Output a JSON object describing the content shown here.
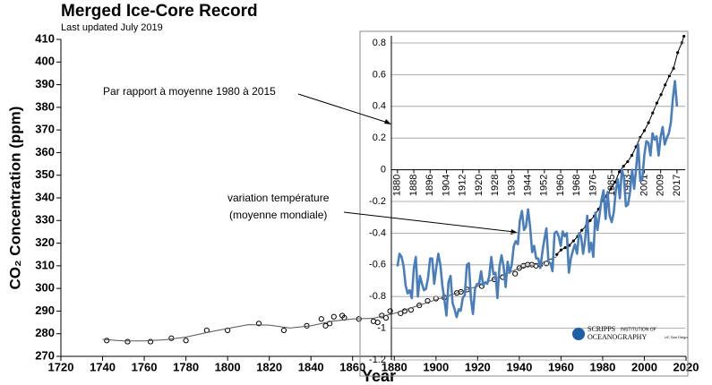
{
  "chart_data": [
    {
      "type": "scatter",
      "title": "Merged Ice-Core Record",
      "subtitle": "Last updated July 2019",
      "xlabel": "Year",
      "ylabel": "CO₂ Concentration (ppm)",
      "xlim": [
        1720,
        2020
      ],
      "xticks": [
        1720,
        1740,
        1760,
        1780,
        1800,
        1820,
        1840,
        1860,
        1880,
        1900,
        1920,
        1940,
        1960,
        1980,
        2000,
        2020
      ],
      "ylim": [
        270,
        410
      ],
      "yticks": [
        270,
        280,
        290,
        300,
        310,
        320,
        330,
        340,
        350,
        360,
        370,
        380,
        390,
        400,
        410
      ],
      "series": [
        {
          "color": "#000000",
          "marker": "circle",
          "x": [
            1742,
            1752,
            1763,
            1773,
            1780,
            1790,
            1800,
            1815,
            1827,
            1838,
            1845,
            1847,
            1849,
            1851,
            1855,
            1856,
            1863,
            1870,
            1872,
            1874,
            1876,
            1878,
            1883,
            1885,
            1888,
            1892,
            1896,
            1900,
            1904,
            1910,
            1912,
            1915,
            1922,
            1928,
            1932,
            1938,
            1940,
            1942,
            1944,
            1946,
            1948,
            1950,
            1953,
            1955
          ],
          "values": [
            277,
            276.5,
            276.5,
            278,
            277,
            281.5,
            281.5,
            284.5,
            281.5,
            283.5,
            286.5,
            283.5,
            284.5,
            287.5,
            288,
            287,
            286.5,
            285.5,
            285,
            288,
            287,
            290,
            289,
            290,
            290.5,
            292.5,
            294.5,
            295.5,
            296,
            298,
            298.5,
            299.5,
            301,
            304,
            305,
            306.5,
            309,
            310,
            310.5,
            310.5,
            310,
            310.5,
            311,
            312
          ]
        },
        {
          "color": "#555555",
          "marker": "none",
          "x": [
            1740,
            1750,
            1760,
            1770,
            1780,
            1790,
            1800,
            1810,
            1820,
            1830,
            1840,
            1850,
            1860,
            1870,
            1880,
            1890,
            1900,
            1910,
            1920,
            1930,
            1940,
            1950,
            1958
          ],
          "values": [
            277.5,
            276.8,
            276.8,
            277.3,
            278.5,
            280.5,
            282.3,
            284,
            283.8,
            282.5,
            283.5,
            285.5,
            286.5,
            286.8,
            289,
            292,
            295,
            298,
            301,
            305,
            309,
            311,
            314
          ]
        },
        {
          "color": "#000000",
          "marker": "dot",
          "x": [
            1958,
            1960,
            1962,
            1964,
            1966,
            1968,
            1970,
            1972,
            1974,
            1976,
            1978,
            1980,
            1982,
            1984,
            1986,
            1988,
            1990,
            1992,
            1994,
            1996,
            1998,
            2000,
            2002,
            2004,
            2006,
            2008,
            2010,
            2012,
            2014,
            2016,
            2018,
            2019
          ],
          "values": [
            315,
            317,
            318,
            319,
            321,
            323,
            325.7,
            327.5,
            330,
            332,
            335,
            338.7,
            341,
            344,
            347,
            351.5,
            354,
            356,
            358.8,
            362.6,
            366.7,
            369.7,
            373.2,
            377.5,
            381.9,
            385.6,
            389.9,
            393.9,
            397.2,
            404.2,
            408.5,
            411.4
          ]
        }
      ],
      "annotations": [
        "Par rapport à moyenne 1980 à 2015",
        "variation température",
        "(moyenne mondiale)"
      ],
      "logo": [
        "SCRIPPS",
        "INSTITUTION OF",
        "OCEANOGRAPHY",
        "UC San Diego"
      ]
    },
    {
      "type": "line",
      "xlim": [
        1877,
        2021
      ],
      "xticks": [
        1880,
        1888,
        1896,
        1904,
        1912,
        1920,
        1928,
        1936,
        1944,
        1952,
        1960,
        1968,
        1976,
        1985,
        1993,
        2001,
        2009,
        2017
      ],
      "ylim": [
        -1.2,
        0.8
      ],
      "yticks": [
        -1.2,
        -1,
        -0.8,
        -0.6,
        -0.4,
        -0.2,
        0,
        0.2,
        0.4,
        0.6,
        0.8
      ],
      "grid": true,
      "x": [
        1880,
        1881,
        1882,
        1883,
        1884,
        1885,
        1886,
        1887,
        1888,
        1889,
        1890,
        1891,
        1892,
        1893,
        1894,
        1895,
        1896,
        1897,
        1898,
        1899,
        1900,
        1901,
        1902,
        1903,
        1904,
        1905,
        1906,
        1907,
        1908,
        1909,
        1910,
        1911,
        1912,
        1913,
        1914,
        1915,
        1916,
        1917,
        1918,
        1919,
        1920,
        1921,
        1922,
        1923,
        1924,
        1925,
        1926,
        1927,
        1928,
        1929,
        1930,
        1931,
        1932,
        1933,
        1934,
        1935,
        1936,
        1937,
        1938,
        1939,
        1940,
        1941,
        1942,
        1943,
        1944,
        1945,
        1946,
        1947,
        1948,
        1949,
        1950,
        1951,
        1952,
        1953,
        1954,
        1955,
        1956,
        1957,
        1958,
        1959,
        1960,
        1961,
        1962,
        1963,
        1964,
        1965,
        1966,
        1967,
        1968,
        1969,
        1970,
        1971,
        1972,
        1973,
        1974,
        1975,
        1976,
        1977,
        1978,
        1979,
        1980,
        1981,
        1982,
        1983,
        1984,
        1985,
        1986,
        1987,
        1988,
        1989,
        1990,
        1991,
        1992,
        1993,
        1994,
        1995,
        1996,
        1997,
        1998,
        1999,
        2000,
        2001,
        2002,
        2003,
        2004,
        2005,
        2006,
        2007,
        2008,
        2009,
        2010,
        2011,
        2012,
        2013,
        2014,
        2015,
        2016,
        2017
      ],
      "series": [
        {
          "color": "#4a7ebb",
          "values": [
            -0.61,
            -0.53,
            -0.55,
            -0.61,
            -0.73,
            -0.78,
            -0.76,
            -0.81,
            -0.62,
            -0.55,
            -0.8,
            -0.67,
            -0.72,
            -0.76,
            -0.75,
            -0.68,
            -0.56,
            -0.56,
            -0.72,
            -0.62,
            -0.53,
            -0.6,
            -0.73,
            -0.82,
            -0.92,
            -0.71,
            -0.67,
            -0.84,
            -0.88,
            -0.93,
            -0.88,
            -0.89,
            -0.81,
            -0.79,
            -0.6,
            -0.59,
            -0.81,
            -0.91,
            -0.75,
            -0.72,
            -0.72,
            -0.64,
            -0.73,
            -0.71,
            -0.72,
            -0.67,
            -0.55,
            -0.66,
            -0.65,
            -0.81,
            -0.61,
            -0.54,
            -0.61,
            -0.74,
            -0.58,
            -0.65,
            -0.6,
            -0.48,
            -0.45,
            -0.47,
            -0.32,
            -0.26,
            -0.38,
            -0.36,
            -0.25,
            -0.36,
            -0.52,
            -0.48,
            -0.56,
            -0.56,
            -0.62,
            -0.52,
            -0.44,
            -0.37,
            -0.58,
            -0.59,
            -0.64,
            -0.4,
            -0.39,
            -0.42,
            -0.48,
            -0.39,
            -0.42,
            -0.4,
            -0.65,
            -0.56,
            -0.51,
            -0.47,
            -0.53,
            -0.4,
            -0.42,
            -0.53,
            -0.44,
            -0.29,
            -0.52,
            -0.46,
            -0.55,
            -0.27,
            -0.38,
            -0.29,
            -0.19,
            -0.13,
            -0.31,
            -0.14,
            -0.29,
            -0.33,
            -0.27,
            -0.13,
            -0.06,
            -0.18,
            0,
            -0.05,
            -0.23,
            -0.22,
            -0.14,
            0,
            -0.12,
            0.01,
            0.16,
            -0.07,
            -0.06,
            0.09,
            0.18,
            0.17,
            0.09,
            0.23,
            0.19,
            0.21,
            0.09,
            0.21,
            0.27,
            0.16,
            0.2,
            0.23,
            0.3,
            0.45,
            0.56,
            0.4
          ]
        }
      ]
    }
  ]
}
